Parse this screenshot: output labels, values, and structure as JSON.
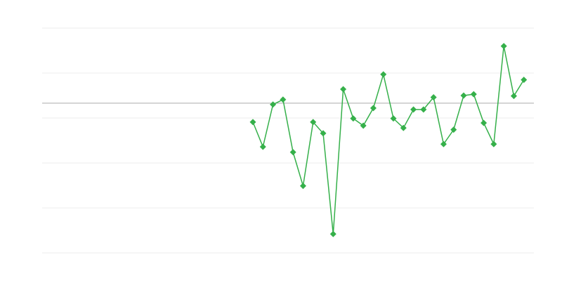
{
  "chart_data": {
    "type": "line",
    "title": "",
    "xlabel": "",
    "ylabel": "",
    "x_range": [
      0,
      49
    ],
    "ylim": [
      -3.33,
      1.67
    ],
    "grid": true,
    "gridlines_y": [
      1.67,
      0.67,
      -0.33,
      -1.33,
      -2.33,
      -3.33
    ],
    "zero_line": 0,
    "legend": "none",
    "marker": "diamond",
    "colors": {
      "series": "#35b04a",
      "grid": "#ececec",
      "zero_line": "#aaaaaa"
    },
    "series": [
      {
        "x": [
          21,
          22,
          23,
          24,
          25,
          26,
          27,
          28,
          29,
          30,
          31,
          32,
          33,
          34,
          35,
          36,
          37,
          38,
          39,
          40,
          41,
          42,
          43,
          44,
          45,
          46,
          47,
          48
        ],
        "values": [
          -0.42,
          -0.97,
          -0.03,
          0.08,
          -1.09,
          -1.84,
          -0.42,
          -0.67,
          -2.91,
          0.31,
          -0.34,
          -0.5,
          -0.11,
          0.64,
          -0.34,
          -0.55,
          -0.14,
          -0.14,
          0.13,
          -0.91,
          -0.59,
          0.17,
          0.2,
          -0.44,
          -0.91,
          1.27,
          0.16,
          0.52
        ]
      }
    ]
  }
}
